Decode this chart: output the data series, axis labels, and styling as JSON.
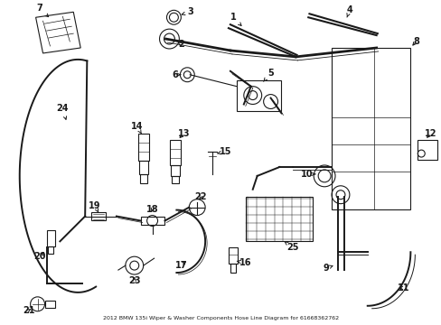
{
  "title": "2012 BMW 135i Wiper & Washer Components Hose Line Diagram for 61668362762",
  "bg": "#ffffff",
  "lw": 0.8,
  "lw2": 1.4,
  "color": "#1a1a1a"
}
